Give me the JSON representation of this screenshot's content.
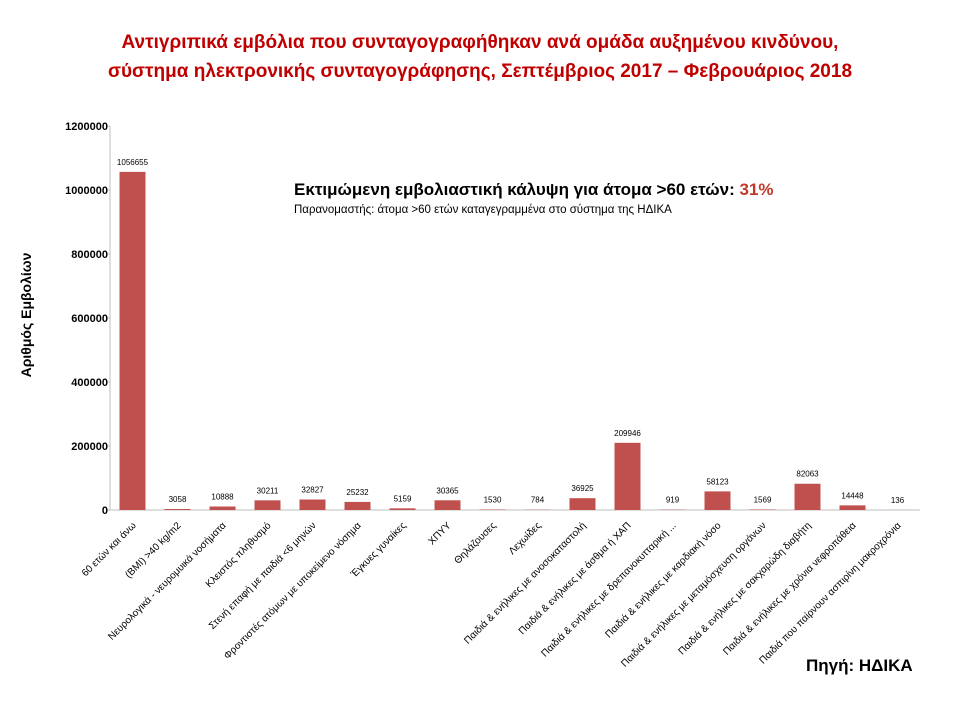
{
  "title_line1": "Αντιγριπικά εμβόλια που συνταγογραφήθηκαν ανά ομάδα αυξημένου κινδύνου,",
  "title_line2": "σύστημα ηλεκτρονικής συνταγογράφησης,  Σεπτέμβριος 2017 – Φεβρουάριος 2018",
  "annotation": {
    "main": "Εκτιμώμενη εμβολιαστική κάλυψη  για  άτομα >60 ετών: ",
    "percent": "31%",
    "sub": "Παρανομαστής: άτομα >60 ετών καταγεγραμμένα στο σύστημα της ΗΔΙΚΑ"
  },
  "source": "Πηγή: ΗΔΙΚΑ",
  "colors": {
    "bar": "#c0504d",
    "title": "#c00000",
    "percent": "#c0392b"
  },
  "chart_data": {
    "type": "bar",
    "title": "Αντιγριπικά εμβόλια που συνταγογραφήθηκαν ανά ομάδα αυξημένου κινδύνου, σύστημα ηλεκτρονικής συνταγογράφησης,  Σεπτέμβριος 2017 – Φεβρουάριος 2018",
    "xlabel": "",
    "ylabel": "Αριθμός Εμβολίων",
    "ylim": [
      0,
      1200000
    ],
    "yticks": [
      0,
      200000,
      400000,
      600000,
      800000,
      1000000,
      1200000
    ],
    "grid": false,
    "legend": "none",
    "categories": [
      "60 ετών και άνω",
      "(BMI) >40 kg/m2",
      "Νευρολογικά - νευρομυικά νοσήματα",
      "Κλειστός πληθυσμό",
      "Στενή επαφή με παιδιά <6 μηνών",
      "Φροντιστές ατόμων με υποκείμενο νόσημα",
      "Έγκυες γυναίκες",
      "ΧΠΥΥ",
      "Θηλάζουσες",
      "Λεχωίδες",
      "Παιδιά & ενήλικες με ανοσοκαταστολή",
      "Παιδιά & ενήλικες με άσθμα ή ΧΑΠ",
      "Παιδιά & ενήλικες με δρεπανοκυτταρική ...",
      "Παιδιά & ενήλικες με καρδιακή νόσο",
      "Παιδιά & ενήλικες με μεταμόσχευση οργάνων",
      "Παιδιά & ενήλικες με σακχαρώδη διαβήτη",
      "Παιδιά & ενήλικες με χρόνια νεφροπάθεια",
      "Παιδιά που παίρνουν ασπιρίνη μακροχρόνια"
    ],
    "values": [
      1056655,
      3058,
      10888,
      30211,
      32827,
      25232,
      5159,
      30365,
      1530,
      784,
      36925,
      209946,
      919,
      58123,
      1569,
      82063,
      14448,
      136
    ]
  }
}
